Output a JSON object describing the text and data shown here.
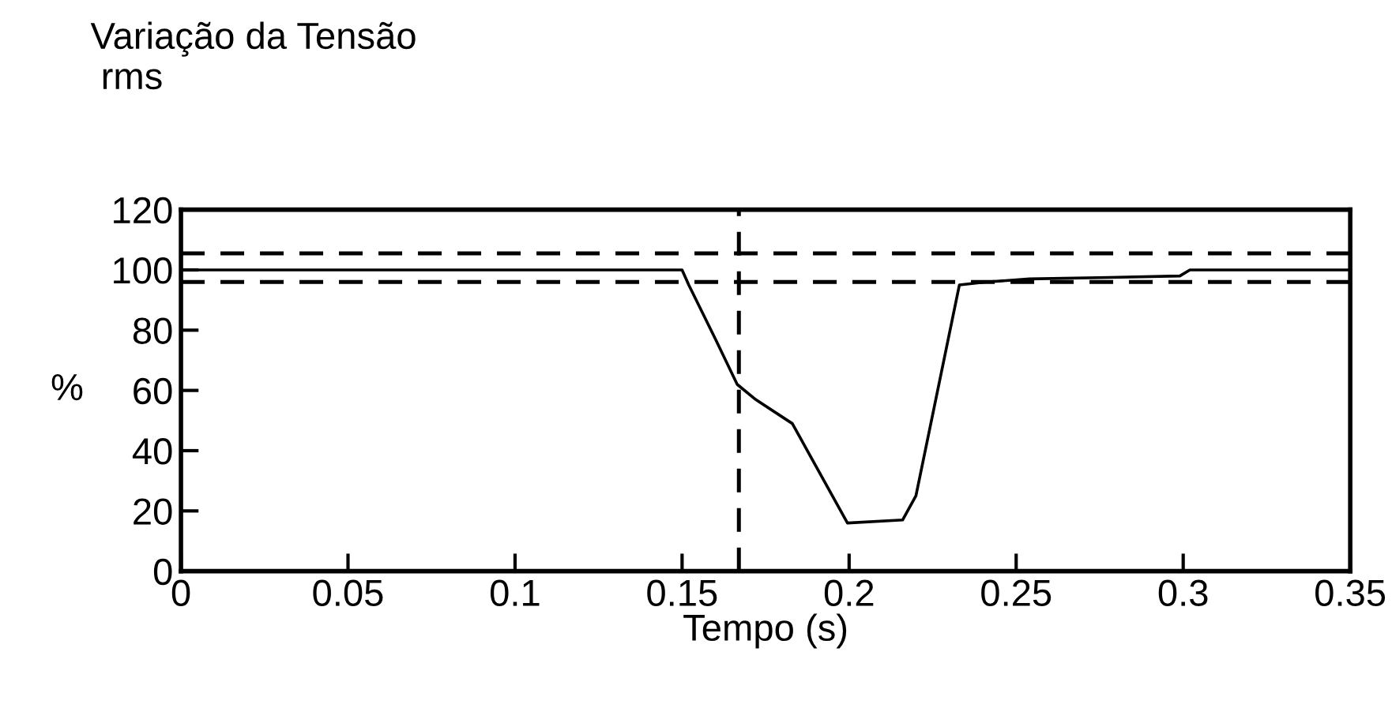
{
  "chart_data": {
    "type": "line",
    "title": "Variação da Tensão\n rms",
    "xlabel": "Tempo (s)",
    "ylabel": "%",
    "x": [
      0,
      0.15,
      0.152,
      0.16,
      0.1665,
      0.172,
      0.183,
      0.1995,
      0.216,
      0.22,
      0.233,
      0.241,
      0.254,
      0.278,
      0.299,
      0.302,
      0.35
    ],
    "series": [
      {
        "color": "#000000",
        "values": [
          100,
          100,
          95,
          77,
          62,
          57,
          49,
          16,
          17,
          25,
          95,
          96,
          97,
          97.5,
          98,
          100,
          100
        ]
      }
    ],
    "xlim": [
      0,
      0.35
    ],
    "xticks": [
      0,
      0.05,
      0.1,
      0.15,
      0.2,
      0.25,
      0.3,
      0.35
    ],
    "ylim": [
      0,
      120
    ],
    "yticks": [
      0,
      20,
      40,
      60,
      80,
      100,
      120
    ],
    "ref_lines": [
      {
        "axis": "y",
        "value": 105.5,
        "line_style": "dashed",
        "color": "#000000"
      },
      {
        "axis": "y",
        "value": 96,
        "line_style": "dashed",
        "color": "#000000"
      },
      {
        "axis": "x",
        "value": 0.167,
        "line_style": "dashed",
        "color": "#000000"
      }
    ],
    "grid": false,
    "legend": false,
    "marker": "none",
    "line_style": "solid"
  }
}
